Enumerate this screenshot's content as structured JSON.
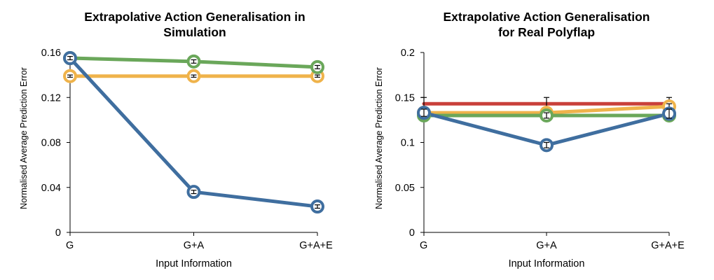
{
  "colors": {
    "blue": "#3f6e9f",
    "green": "#6aa75a",
    "orange": "#efb34b",
    "red": "#c9403a",
    "axis": "#000000",
    "error_bar": "#000000"
  },
  "chart_data": [
    {
      "type": "line",
      "title_lines": [
        "Extrapolative Action Generalisation in",
        "Simulation"
      ],
      "xlabel": "Input Information",
      "ylabel": "Normalised Average Prediction Error",
      "categories": [
        "G",
        "G+A",
        "G+A+E"
      ],
      "ylim": [
        0,
        0.16
      ],
      "yticks": [
        "0",
        "0.04",
        "0.08",
        "0.12",
        "0.16"
      ],
      "grid": false,
      "legend": "none",
      "series": [
        {
          "color": "orange",
          "values": [
            0.139,
            0.139,
            0.139
          ],
          "errors": [
            0.001,
            0.001,
            0.001
          ],
          "markers": true
        },
        {
          "color": "green",
          "values": [
            0.155,
            0.152,
            0.147
          ],
          "errors": [
            0.001,
            0.0015,
            0.0015
          ],
          "markers": true
        },
        {
          "color": "blue",
          "values": [
            0.155,
            0.036,
            0.023
          ],
          "errors": [
            0.0015,
            0.0015,
            0.0015
          ],
          "markers": true
        }
      ]
    },
    {
      "type": "line",
      "title_lines": [
        "Extrapolative Action Generalisation",
        "for Real Polyflap"
      ],
      "xlabel": "Input Information",
      "ylabel": "Normalised Average Prediction Error",
      "categories": [
        "G",
        "G+A",
        "G+A+E"
      ],
      "ylim": [
        0,
        0.2
      ],
      "yticks": [
        "0",
        "0.05",
        "0.1",
        "0.15",
        "0.2"
      ],
      "grid": false,
      "legend": "none",
      "series": [
        {
          "color": "red",
          "values": [
            0.143,
            0.143,
            0.143
          ],
          "errors": [
            0.007,
            0.007,
            0.007
          ],
          "markers": false
        },
        {
          "color": "orange",
          "values": [
            0.133,
            0.133,
            0.14
          ],
          "errors": [
            0.003,
            0.003,
            0.003
          ],
          "markers": true
        },
        {
          "color": "green",
          "values": [
            0.13,
            0.13,
            0.13
          ],
          "errors": [
            0.003,
            0.003,
            0.003
          ],
          "markers": true
        },
        {
          "color": "blue",
          "values": [
            0.133,
            0.097,
            0.132
          ],
          "errors": [
            0.004,
            0.003,
            0.005
          ],
          "markers": true
        }
      ]
    }
  ]
}
